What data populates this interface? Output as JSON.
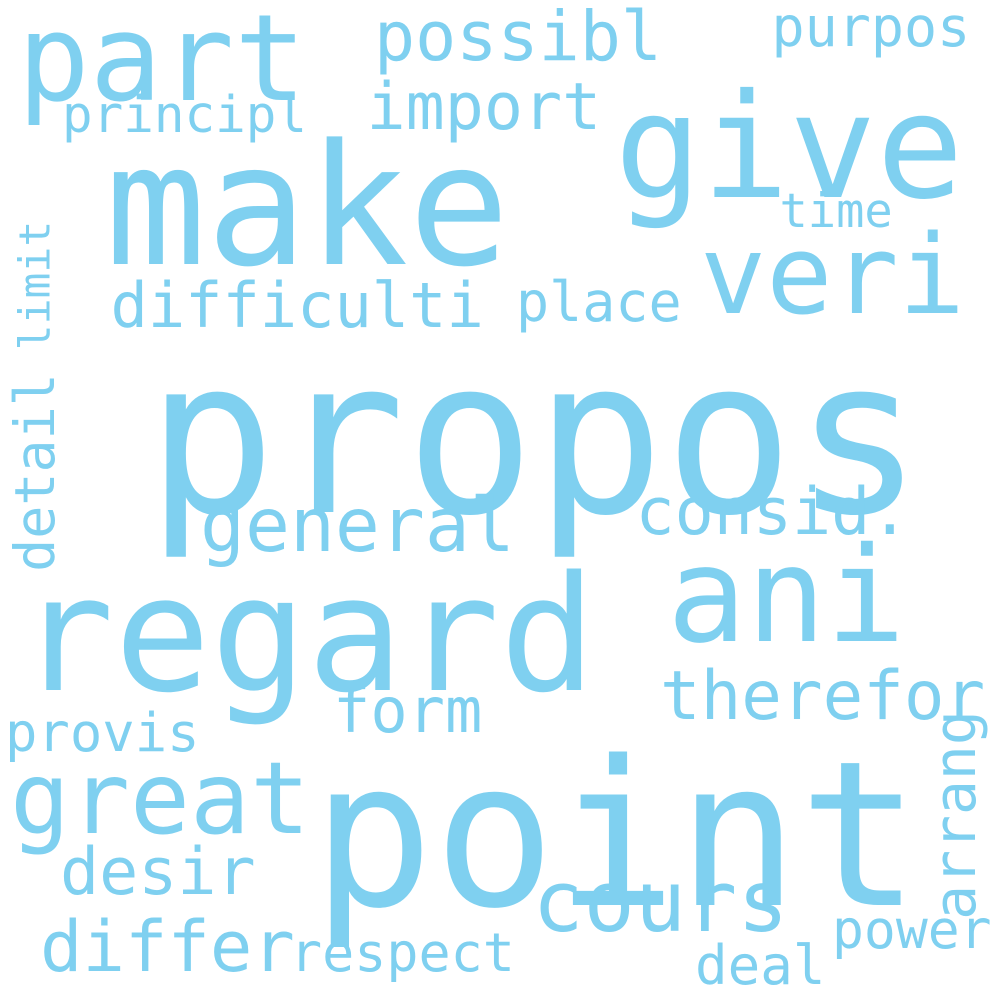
{
  "text_color": "#7fd0f0",
  "background_color": "#ffffff",
  "words": [
    {
      "text": "propos"
    },
    {
      "text": "point"
    },
    {
      "text": "make"
    },
    {
      "text": "regard"
    },
    {
      "text": "give"
    },
    {
      "text": "ani"
    },
    {
      "text": "veri"
    },
    {
      "text": "part"
    },
    {
      "text": "great"
    },
    {
      "text": "cours"
    },
    {
      "text": "general"
    },
    {
      "text": "consid."
    },
    {
      "text": "therefor"
    },
    {
      "text": "difficulti"
    },
    {
      "text": "differ"
    },
    {
      "text": "possibl"
    },
    {
      "text": "import"
    },
    {
      "text": "purpos"
    },
    {
      "text": "form"
    },
    {
      "text": "desir"
    },
    {
      "text": "respect"
    },
    {
      "text": "place"
    },
    {
      "text": "principl"
    },
    {
      "text": "power"
    },
    {
      "text": "provis"
    },
    {
      "text": "time"
    },
    {
      "text": "deal"
    },
    {
      "text": "detail"
    },
    {
      "text": "limit"
    },
    {
      "text": "arrang"
    }
  ]
}
